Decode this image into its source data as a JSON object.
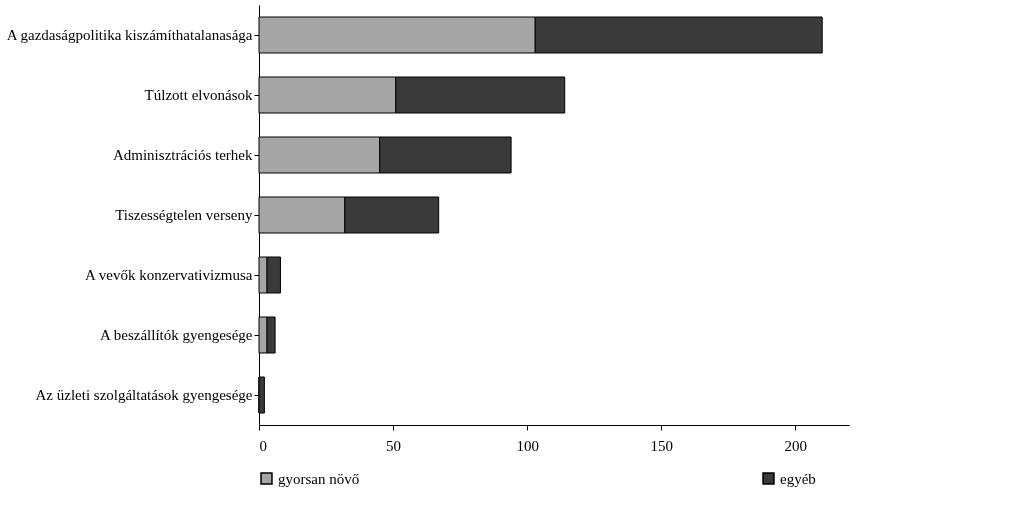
{
  "chart_data": {
    "type": "bar",
    "orientation": "horizontal",
    "stacked": true,
    "categories": [
      "A gazdaságpolitika kiszámíthatalanasága",
      "Túlzott elvonások",
      "Adminisztrációs terhek",
      "Tiszességtelen verseny",
      "A vevők konzervativizmusa",
      "A beszállítók gyengesége",
      "Az üzleti szolgáltatások gyengesége"
    ],
    "series": [
      {
        "name": "gyorsan növő",
        "color": "#a6a6a6",
        "values": [
          103,
          51,
          45,
          32,
          3,
          3,
          0
        ]
      },
      {
        "name": "egyéb",
        "color": "#3a3a3a",
        "values": [
          107,
          63,
          49,
          35,
          5,
          3,
          2
        ]
      }
    ],
    "xlim": [
      0,
      220
    ],
    "xticks": [
      0,
      50,
      100,
      150,
      200
    ],
    "grid": false,
    "legend": "bottom"
  }
}
